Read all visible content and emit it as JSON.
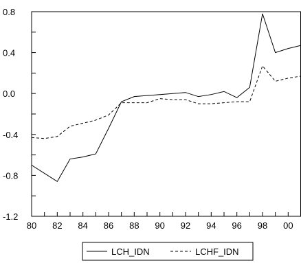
{
  "chart_data": {
    "type": "line",
    "title": "",
    "xlabel": "",
    "ylabel": "",
    "x": [
      "1980",
      "1981",
      "1982",
      "1983",
      "1984",
      "1985",
      "1986",
      "1987",
      "1988",
      "1989",
      "1990",
      "1991",
      "1992",
      "1993",
      "1994",
      "1995",
      "1996",
      "1997",
      "1998",
      "1999",
      "2000",
      "2001"
    ],
    "x_tick_labels": [
      "80",
      "82",
      "84",
      "86",
      "88",
      "90",
      "92",
      "94",
      "96",
      "98",
      "00"
    ],
    "y_tick_labels": [
      "0.8",
      "0.4",
      "0.0",
      "-0.4",
      "-0.8",
      "-1.2"
    ],
    "xlim": [
      1980,
      2001
    ],
    "ylim": [
      -1.2,
      0.8
    ],
    "grid": false,
    "legend_position": "bottom",
    "series": [
      {
        "name": "LCH_IDN",
        "line_style": "solid",
        "color": "#000000",
        "values": [
          -0.7,
          -0.78,
          -0.86,
          -0.64,
          -0.62,
          -0.59,
          -0.34,
          -0.08,
          -0.03,
          -0.02,
          -0.01,
          0.0,
          0.01,
          -0.03,
          -0.01,
          0.02,
          -0.04,
          0.06,
          0.78,
          0.4,
          0.44,
          0.47
        ]
      },
      {
        "name": "LCHF_IDN",
        "line_style": "dashed",
        "color": "#000000",
        "values": [
          -0.43,
          -0.44,
          -0.42,
          -0.32,
          -0.29,
          -0.26,
          -0.21,
          -0.09,
          -0.09,
          -0.09,
          -0.05,
          -0.06,
          -0.06,
          -0.1,
          -0.1,
          -0.09,
          -0.08,
          -0.08,
          0.27,
          0.12,
          0.15,
          0.17
        ]
      }
    ]
  }
}
